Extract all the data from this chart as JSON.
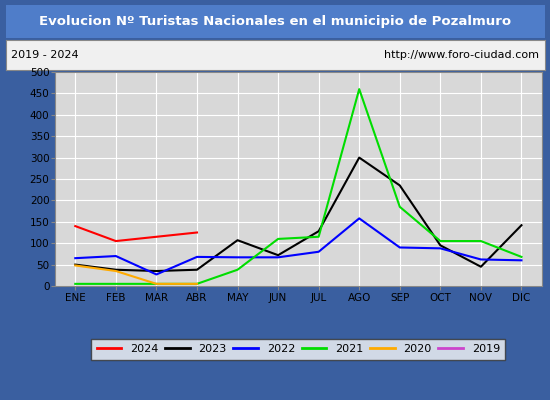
{
  "title": "Evolucion Nº Turistas Nacionales en el municipio de Pozalmuro",
  "subtitle_left": "2019 - 2024",
  "subtitle_right": "http://www.foro-ciudad.com",
  "title_bg_color": "#4f7dc9",
  "title_text_color": "#ffffff",
  "outer_border_color": "#3a5fa0",
  "subtitle_bg_color": "#f0f0f0",
  "plot_bg_color": "#d8d8d8",
  "grid_color": "#ffffff",
  "months": [
    "ENE",
    "FEB",
    "MAR",
    "ABR",
    "MAY",
    "JUN",
    "JUL",
    "AGO",
    "SEP",
    "OCT",
    "NOV",
    "DIC"
  ],
  "ylim": [
    0,
    500
  ],
  "yticks": [
    0,
    50,
    100,
    150,
    200,
    250,
    300,
    350,
    400,
    450,
    500
  ],
  "series": {
    "2024": {
      "color": "#ff0000",
      "data": [
        140,
        105,
        115,
        125,
        null,
        null,
        null,
        null,
        null,
        null,
        null,
        null
      ]
    },
    "2023": {
      "color": "#000000",
      "data": [
        50,
        38,
        35,
        38,
        107,
        72,
        128,
        300,
        235,
        95,
        45,
        142
      ]
    },
    "2022": {
      "color": "#0000ff",
      "data": [
        65,
        70,
        27,
        68,
        67,
        67,
        80,
        158,
        90,
        88,
        62,
        60
      ]
    },
    "2021": {
      "color": "#00dd00",
      "data": [
        5,
        5,
        5,
        5,
        38,
        110,
        115,
        460,
        185,
        105,
        105,
        68
      ]
    },
    "2020": {
      "color": "#ffaa00",
      "data": [
        48,
        35,
        5,
        5,
        null,
        null,
        null,
        null,
        null,
        null,
        null,
        null
      ]
    },
    "2019": {
      "color": "#cc44cc",
      "data": [
        null,
        null,
        null,
        null,
        null,
        null,
        null,
        null,
        null,
        null,
        null,
        null
      ]
    }
  },
  "legend_order": [
    "2024",
    "2023",
    "2022",
    "2021",
    "2020",
    "2019"
  ]
}
